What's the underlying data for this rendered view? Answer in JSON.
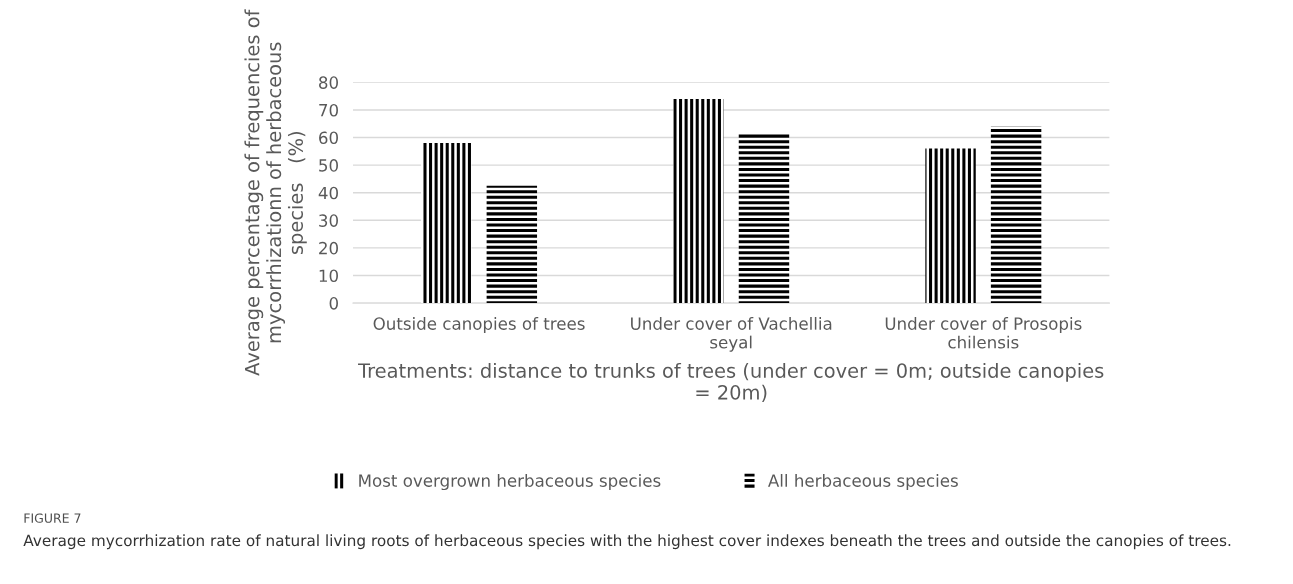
{
  "chart_data": {
    "type": "bar",
    "categories": [
      "Outside canopies of trees",
      "Under cover of Vachellia seyal",
      "Under cover of Prosopis chilensis"
    ],
    "series": [
      {
        "name": "Most overgrown herbaceous species",
        "color": "#000000",
        "values": [
          58,
          74,
          56
        ]
      },
      {
        "name": "All herbaceous species",
        "color": "#000000",
        "values": [
          42.5,
          62,
          64
        ]
      }
    ],
    "xlabel": "Treatments: distance to trunks of trees (under cover = 0m; outside canopies = 20m)",
    "ylabel": "Average percentage of frequencies of mycorrhizationn of herbaceous species   (%)",
    "ylim": [
      0,
      80
    ],
    "yticks": [
      0,
      10,
      20,
      30,
      40,
      50,
      60,
      70,
      80
    ],
    "grid": "y",
    "legend": "bottom",
    "annotations": [
      "FIGURE 7",
      "Average mycorrhization rate of natural living roots of herbaceous species with the highest cover indexes beneath the trees and outside the canopies of trees."
    ]
  }
}
